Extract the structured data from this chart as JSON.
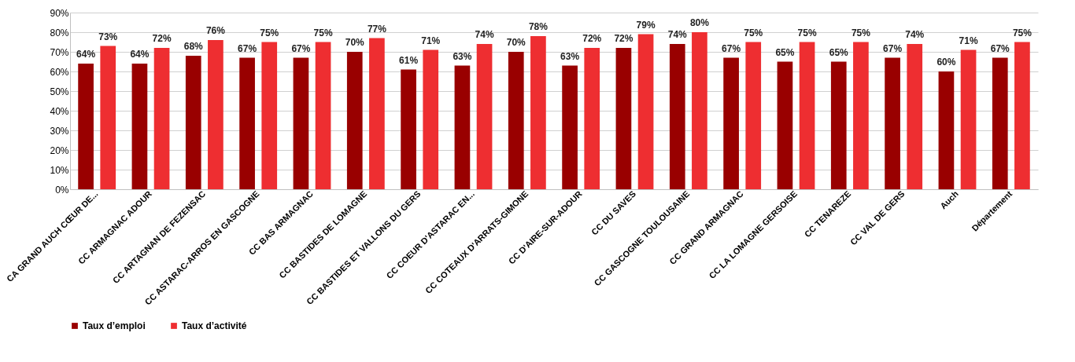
{
  "chart_data": {
    "type": "bar",
    "categories": [
      "CA GRAND AUCH CŒUR DE...",
      "CC ARMAGNAC ADOUR",
      "CC ARTAGNAN DE FEZENSAC",
      "CC ASTARAC-ARROS EN GASCOGNE",
      "CC BAS ARMAGNAC",
      "CC BASTIDES DE LOMAGNE",
      "CC BASTIDES ET VALLONS DU GERS",
      "CC COEUR D'ASTARAC EN...",
      "CC COTEAUX D'ARRATS-GIMONE",
      "CC D'AIRE-SUR-ADOUR",
      "CC DU SAVES",
      "CC GASCOGNE TOULOUSAINE",
      "CC GRAND ARMAGNAC",
      "CC LA LOMAGNE GERSOISE",
      "CC TENAREZE",
      "CC VAL DE GERS",
      "Auch",
      "Département"
    ],
    "series": [
      {
        "name": "Taux d’emploi",
        "color": "#990000",
        "values": [
          64,
          64,
          68,
          67,
          67,
          70,
          61,
          63,
          70,
          63,
          72,
          74,
          67,
          65,
          65,
          67,
          60,
          67
        ],
        "value_labels": [
          "64%",
          "64%",
          "68%",
          "67%",
          "67%",
          "70%",
          "61%",
          "63%",
          "70%",
          "63%",
          "72%",
          "74%",
          "67%",
          "65%",
          "65%",
          "67%",
          "60%",
          "67%"
        ]
      },
      {
        "name": "Taux d’activité",
        "color": "#ee2e31",
        "values": [
          73,
          72,
          76,
          75,
          75,
          77,
          71,
          74,
          78,
          72,
          79,
          80,
          75,
          75,
          75,
          74,
          71,
          75
        ],
        "value_labels": [
          "73%",
          "72%",
          "76%",
          "75%",
          "75%",
          "77%",
          "71%",
          "74%",
          "78%",
          "72%",
          "79%",
          "80%",
          "75%",
          "75%",
          "75%",
          "74%",
          "71%",
          "75%"
        ]
      }
    ],
    "ylim": [
      0,
      90
    ],
    "yticks": [
      {
        "value": 0,
        "label": "0%"
      },
      {
        "value": 10,
        "label": "10%"
      },
      {
        "value": 20,
        "label": "20%"
      },
      {
        "value": 30,
        "label": "30%"
      },
      {
        "value": 40,
        "label": "40%"
      },
      {
        "value": 50,
        "label": "50%"
      },
      {
        "value": 60,
        "label": "60%"
      },
      {
        "value": 70,
        "label": "70%"
      },
      {
        "value": 80,
        "label": "80%"
      },
      {
        "value": 90,
        "label": "90%"
      }
    ],
    "grid": "y",
    "legend": "bottom"
  }
}
